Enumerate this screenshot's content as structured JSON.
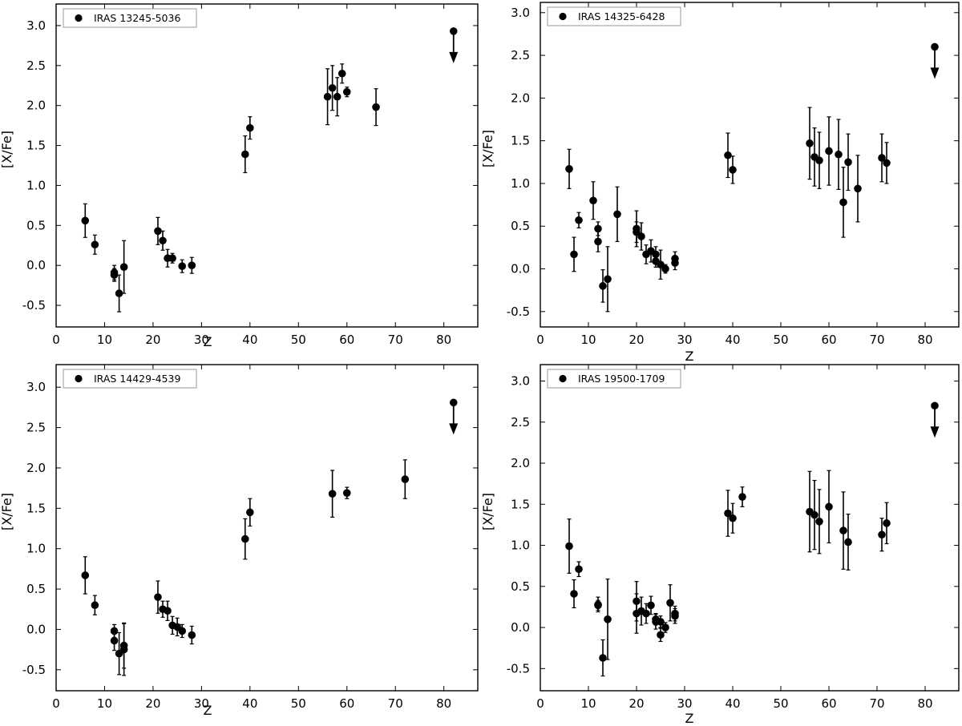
{
  "chart_data": [
    {
      "type": "scatter",
      "legend_label": "IRAS 13245-5036",
      "legend_placement": "top-left",
      "xlabel": "Z",
      "ylabel": "[X/Fe]",
      "xlim": [
        0,
        87
      ],
      "ylim": [
        -0.77,
        3.27
      ],
      "xticks": [
        "0",
        "10",
        "20",
        "30",
        "40",
        "50",
        "60",
        "70",
        "80"
      ],
      "yticks": [
        "-0.5",
        "0.0",
        "0.5",
        "1.0",
        "1.5",
        "2.0",
        "2.5",
        "3.0"
      ],
      "grid": false,
      "points": [
        {
          "x": 6,
          "y": 0.56,
          "err": 0.21
        },
        {
          "x": 8,
          "y": 0.26,
          "err": 0.12
        },
        {
          "x": 12,
          "y": -0.09,
          "err": 0.09
        },
        {
          "x": 12,
          "y": -0.12,
          "err": 0.08
        },
        {
          "x": 13,
          "y": -0.35,
          "err": 0.23
        },
        {
          "x": 14,
          "y": -0.02,
          "err": 0.33
        },
        {
          "x": 21,
          "y": 0.43,
          "err": 0.17
        },
        {
          "x": 22,
          "y": 0.31,
          "err": 0.12
        },
        {
          "x": 23,
          "y": 0.09,
          "err": 0.11
        },
        {
          "x": 24,
          "y": 0.09,
          "err": 0.06
        },
        {
          "x": 26,
          "y": -0.01,
          "err": 0.08
        },
        {
          "x": 28,
          "y": 0.0,
          "err": 0.1
        },
        {
          "x": 39,
          "y": 1.39,
          "err": 0.23
        },
        {
          "x": 40,
          "y": 1.72,
          "err": 0.14
        },
        {
          "x": 56,
          "y": 2.11,
          "err": 0.35
        },
        {
          "x": 57,
          "y": 2.22,
          "err": 0.28
        },
        {
          "x": 58,
          "y": 2.11,
          "err": 0.24
        },
        {
          "x": 59,
          "y": 2.4,
          "err": 0.12
        },
        {
          "x": 60,
          "y": 2.17,
          "err": 0.06
        },
        {
          "x": 66,
          "y": 1.98,
          "err": 0.23
        }
      ],
      "upper_limits": [
        {
          "x": 82,
          "y": 2.93
        }
      ]
    },
    {
      "type": "scatter",
      "legend_label": "IRAS 14325-6428",
      "legend_placement": "top-left",
      "xlabel": "Z",
      "ylabel": "[X/Fe]",
      "xlim": [
        0,
        87
      ],
      "ylim": [
        -0.68,
        3.12
      ],
      "xticks": [
        "0",
        "10",
        "20",
        "30",
        "40",
        "50",
        "60",
        "70",
        "80"
      ],
      "yticks": [
        "-0.5",
        "0.0",
        "0.5",
        "1.0",
        "1.5",
        "2.0",
        "2.5",
        "3.0"
      ],
      "grid": false,
      "points": [
        {
          "x": 6,
          "y": 1.17,
          "err": 0.23
        },
        {
          "x": 7,
          "y": 0.17,
          "err": 0.2
        },
        {
          "x": 8,
          "y": 0.57,
          "err": 0.09
        },
        {
          "x": 11,
          "y": 0.8,
          "err": 0.22
        },
        {
          "x": 12,
          "y": 0.47,
          "err": 0.08
        },
        {
          "x": 12,
          "y": 0.32,
          "err": 0.12
        },
        {
          "x": 13,
          "y": -0.2,
          "err": 0.19
        },
        {
          "x": 14,
          "y": -0.12,
          "err": 0.38
        },
        {
          "x": 16,
          "y": 0.64,
          "err": 0.32
        },
        {
          "x": 20,
          "y": 0.47,
          "err": 0.21
        },
        {
          "x": 20,
          "y": 0.43,
          "err": 0.12
        },
        {
          "x": 21,
          "y": 0.38,
          "err": 0.16
        },
        {
          "x": 22,
          "y": 0.17,
          "err": 0.11
        },
        {
          "x": 23,
          "y": 0.21,
          "err": 0.13
        },
        {
          "x": 24,
          "y": 0.17,
          "err": 0.09
        },
        {
          "x": 24,
          "y": 0.09,
          "err": 0.07
        },
        {
          "x": 25,
          "y": 0.05,
          "err": 0.17
        },
        {
          "x": 26,
          "y": 0.0,
          "err": 0.05
        },
        {
          "x": 28,
          "y": 0.12,
          "err": 0.08
        },
        {
          "x": 28,
          "y": 0.07,
          "err": 0.08
        },
        {
          "x": 39,
          "y": 1.33,
          "err": 0.26
        },
        {
          "x": 40,
          "y": 1.16,
          "err": 0.16
        },
        {
          "x": 56,
          "y": 1.47,
          "err": 0.42
        },
        {
          "x": 57,
          "y": 1.31,
          "err": 0.34
        },
        {
          "x": 58,
          "y": 1.27,
          "err": 0.33
        },
        {
          "x": 60,
          "y": 1.38,
          "err": 0.4
        },
        {
          "x": 62,
          "y": 1.34,
          "err": 0.41
        },
        {
          "x": 63,
          "y": 0.78,
          "err": 0.41
        },
        {
          "x": 64,
          "y": 1.25,
          "err": 0.33
        },
        {
          "x": 66,
          "y": 0.94,
          "err": 0.39
        },
        {
          "x": 71,
          "y": 1.3,
          "err": 0.28
        },
        {
          "x": 72,
          "y": 1.24,
          "err": 0.24
        }
      ],
      "upper_limits": [
        {
          "x": 82,
          "y": 2.6
        }
      ]
    },
    {
      "type": "scatter",
      "legend_label": "IRAS 14429-4539",
      "legend_placement": "top-left",
      "xlabel": "Z",
      "ylabel": "[X/Fe]",
      "xlim": [
        0,
        87
      ],
      "ylim": [
        -0.76,
        3.28
      ],
      "xticks": [
        "0",
        "10",
        "20",
        "30",
        "40",
        "50",
        "60",
        "70",
        "80"
      ],
      "yticks": [
        "-0.5",
        "0.0",
        "0.5",
        "1.0",
        "1.5",
        "2.0",
        "2.5",
        "3.0"
      ],
      "grid": false,
      "points": [
        {
          "x": 6,
          "y": 0.67,
          "err": 0.23
        },
        {
          "x": 8,
          "y": 0.3,
          "err": 0.12
        },
        {
          "x": 12,
          "y": -0.02,
          "err": 0.08
        },
        {
          "x": 12,
          "y": -0.14,
          "err": 0.12
        },
        {
          "x": 13,
          "y": -0.3,
          "err": 0.26
        },
        {
          "x": 14,
          "y": -0.2,
          "err": 0.28
        },
        {
          "x": 14,
          "y": -0.25,
          "err": 0.32
        },
        {
          "x": 21,
          "y": 0.4,
          "err": 0.2
        },
        {
          "x": 22,
          "y": 0.25,
          "err": 0.1
        },
        {
          "x": 23,
          "y": 0.23,
          "err": 0.12
        },
        {
          "x": 24,
          "y": 0.05,
          "err": 0.11
        },
        {
          "x": 25,
          "y": 0.03,
          "err": 0.11
        },
        {
          "x": 26,
          "y": -0.02,
          "err": 0.08
        },
        {
          "x": 28,
          "y": -0.07,
          "err": 0.11
        },
        {
          "x": 39,
          "y": 1.12,
          "err": 0.25
        },
        {
          "x": 40,
          "y": 1.45,
          "err": 0.17
        },
        {
          "x": 57,
          "y": 1.68,
          "err": 0.29
        },
        {
          "x": 60,
          "y": 1.69,
          "err": 0.07
        },
        {
          "x": 72,
          "y": 1.86,
          "err": 0.24
        }
      ],
      "upper_limits": [
        {
          "x": 82,
          "y": 2.81
        }
      ]
    },
    {
      "type": "scatter",
      "legend_label": "IRAS 19500-1709",
      "legend_placement": "top-left",
      "xlabel": "Z",
      "ylabel": "[X/Fe]",
      "xlim": [
        0,
        87
      ],
      "ylim": [
        -0.77,
        3.2
      ],
      "xticks": [
        "0",
        "10",
        "20",
        "30",
        "40",
        "50",
        "60",
        "70",
        "80"
      ],
      "yticks": [
        "-0.5",
        "0.0",
        "0.5",
        "1.0",
        "1.5",
        "2.0",
        "2.5",
        "3.0"
      ],
      "grid": false,
      "points": [
        {
          "x": 6,
          "y": 0.99,
          "err": 0.33
        },
        {
          "x": 7,
          "y": 0.41,
          "err": 0.17
        },
        {
          "x": 8,
          "y": 0.71,
          "err": 0.09
        },
        {
          "x": 12,
          "y": 0.28,
          "err": 0.09
        },
        {
          "x": 12,
          "y": 0.27,
          "err": 0.06
        },
        {
          "x": 13,
          "y": -0.37,
          "err": 0.22
        },
        {
          "x": 14,
          "y": 0.1,
          "err": 0.49
        },
        {
          "x": 20,
          "y": 0.32,
          "err": 0.24
        },
        {
          "x": 20,
          "y": 0.17,
          "err": 0.24
        },
        {
          "x": 21,
          "y": 0.2,
          "err": 0.17
        },
        {
          "x": 22,
          "y": 0.17,
          "err": 0.12
        },
        {
          "x": 23,
          "y": 0.27,
          "err": 0.11
        },
        {
          "x": 24,
          "y": 0.07,
          "err": 0.09
        },
        {
          "x": 24,
          "y": 0.1,
          "err": 0.07
        },
        {
          "x": 25,
          "y": 0.07,
          "err": 0.07
        },
        {
          "x": 25,
          "y": -0.09,
          "err": 0.08
        },
        {
          "x": 26,
          "y": 0.0,
          "err": 0.06
        },
        {
          "x": 27,
          "y": 0.3,
          "err": 0.22
        },
        {
          "x": 28,
          "y": 0.17,
          "err": 0.09
        },
        {
          "x": 28,
          "y": 0.14,
          "err": 0.09
        },
        {
          "x": 39,
          "y": 1.39,
          "err": 0.28
        },
        {
          "x": 40,
          "y": 1.33,
          "err": 0.18
        },
        {
          "x": 42,
          "y": 1.59,
          "err": 0.12
        },
        {
          "x": 56,
          "y": 1.41,
          "err": 0.49
        },
        {
          "x": 57,
          "y": 1.37,
          "err": 0.42
        },
        {
          "x": 58,
          "y": 1.29,
          "err": 0.39
        },
        {
          "x": 60,
          "y": 1.47,
          "err": 0.44
        },
        {
          "x": 63,
          "y": 1.18,
          "err": 0.47
        },
        {
          "x": 64,
          "y": 1.04,
          "err": 0.34
        },
        {
          "x": 71,
          "y": 1.13,
          "err": 0.2
        },
        {
          "x": 72,
          "y": 1.27,
          "err": 0.25
        }
      ],
      "upper_limits": [
        {
          "x": 82,
          "y": 2.7
        }
      ]
    }
  ]
}
